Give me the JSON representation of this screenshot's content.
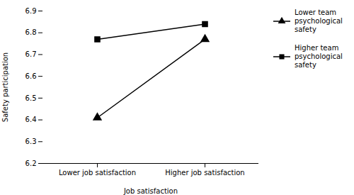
{
  "chart_data": {
    "type": "line",
    "categories": [
      "Lower job satisfaction",
      "Higher job satisfaction"
    ],
    "series": [
      {
        "name": "Lower team\npsychological\nsafety",
        "color": "#000000",
        "marker": "triangle",
        "values": [
          6.41,
          6.77
        ]
      },
      {
        "name": "Higher team\npsychological\nsafety",
        "color": "#000000",
        "marker": "square",
        "values": [
          6.77,
          6.84
        ]
      }
    ],
    "xlabel": "Job satisfaction",
    "ylabel": "Safety participation",
    "ylim": [
      6.2,
      6.9
    ],
    "yticks": [
      6.2,
      6.3,
      6.4,
      6.5,
      6.6,
      6.7,
      6.8,
      6.9
    ],
    "grid": false,
    "legend": "right"
  }
}
